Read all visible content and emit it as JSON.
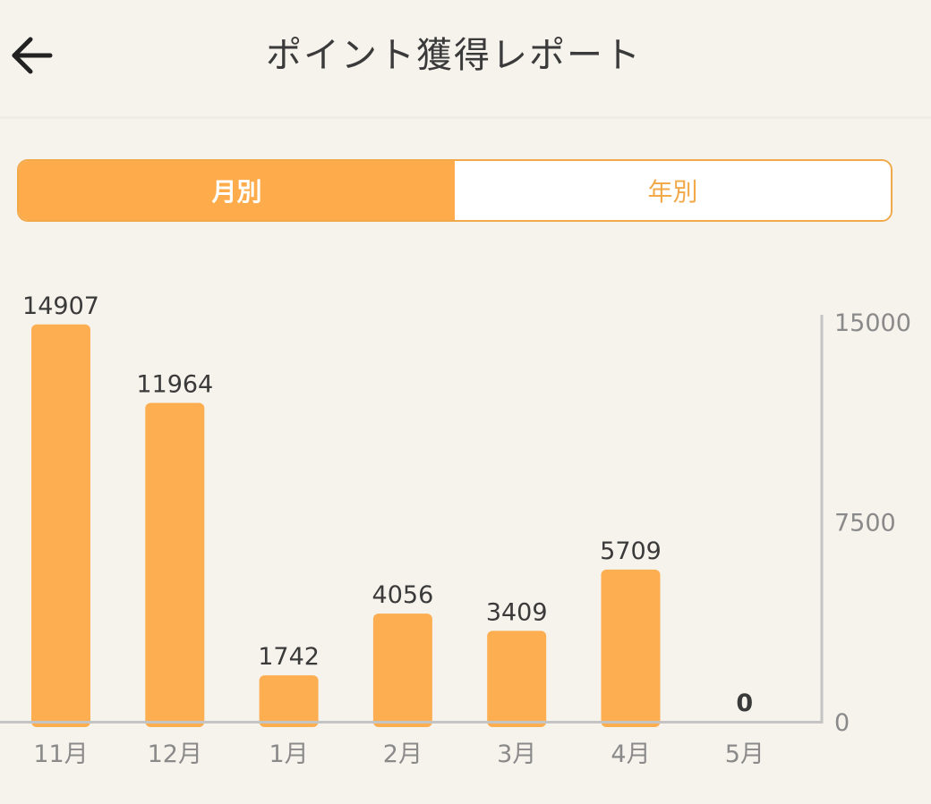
{
  "header": {
    "title": "ポイント獲得レポート",
    "back_icon": "arrow-left-icon"
  },
  "segment": {
    "monthly_label": "月別",
    "yearly_label": "年別",
    "selected": "monthly"
  },
  "colors": {
    "accent": "#fdab4b",
    "bar": "#fdae50",
    "background": "#f6f2ec",
    "axis": "#c4c4c4",
    "text_dark": "#3a3a3a",
    "text_muted": "#8a8a8a"
  },
  "chart_data": {
    "type": "bar",
    "categories": [
      "11月",
      "12月",
      "1月",
      "2月",
      "3月",
      "4月",
      "5月"
    ],
    "values": [
      14907,
      11964,
      1742,
      4056,
      3409,
      5709,
      0
    ],
    "y_ticks": [
      "15000",
      "7500",
      "0"
    ],
    "ylim": [
      0,
      15000
    ],
    "y_axis_position": "right",
    "grid": false
  }
}
